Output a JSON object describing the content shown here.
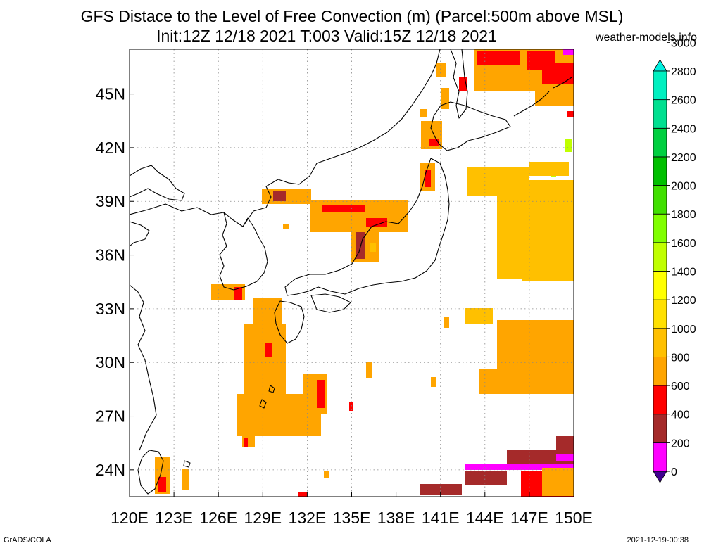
{
  "header": {
    "title_line1": "GFS Distace to the Level of Free Convection (m) (Parcel:500m above MSL)",
    "title_line2": "Init:12Z 12/18 2021 T:003 Valid:15Z 12/18 2021",
    "site": "weather-models.info"
  },
  "footer": {
    "software": "GrADS/COLA",
    "timestamp": "2021-12-19-00:38"
  },
  "map": {
    "lon_labels": [
      "120E",
      "123E",
      "126E",
      "129E",
      "132E",
      "135E",
      "138E",
      "141E",
      "144E",
      "147E",
      "150E"
    ],
    "lat_labels": [
      "45N",
      "42N",
      "39N",
      "36N",
      "33N",
      "30N",
      "27N",
      "24N"
    ],
    "lon_range": [
      120,
      150
    ],
    "lat_range": [
      22.5,
      47.5
    ],
    "gridlines": true
  },
  "colorbar": {
    "levels": [
      "0",
      "200",
      "400",
      "600",
      "800",
      "1000",
      "1200",
      "1400",
      "1600",
      "1800",
      "2000",
      "2200",
      "2400",
      "2600",
      "2800",
      "3000"
    ],
    "colors": [
      "#400090",
      "#ff00ff",
      "#a52a2a",
      "#ff0000",
      "#ffa500",
      "#ffc000",
      "#ffe000",
      "#ffff00",
      "#c0ff00",
      "#80ff00",
      "#40e000",
      "#00c000",
      "#00d040",
      "#00e090",
      "#00f0c0",
      "#00f0e0"
    ]
  },
  "fill_colors": {
    "magenta": "#ff00ff",
    "brown": "#a52a2a",
    "red": "#ff0000",
    "orange": "#ffa500",
    "gold": "#ffc000",
    "yellow": "#ffe000",
    "lime": "#c0ff00"
  }
}
